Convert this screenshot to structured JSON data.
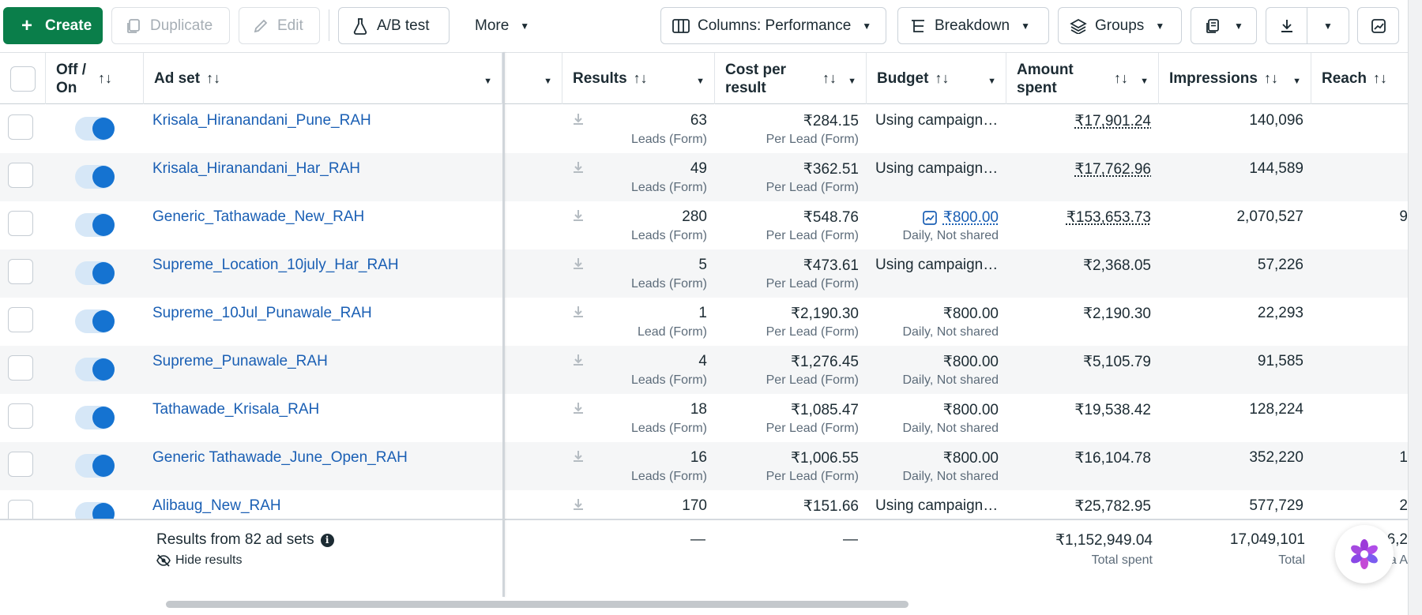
{
  "toolbar": {
    "create": "Create",
    "duplicate": "Duplicate",
    "edit": "Edit",
    "ab_test": "A/B test",
    "more": "More",
    "columns": "Columns: Performance",
    "breakdown": "Breakdown",
    "groups": "Groups"
  },
  "headers": {
    "off_on": "Off /\nOn",
    "ad_set": "Ad set",
    "results": "Results",
    "cost_per_result": "Cost per\nresult",
    "budget": "Budget",
    "amount_spent": "Amount\nspent",
    "impressions": "Impressions",
    "reach": "Reach"
  },
  "rows": [
    {
      "name": "Krisala_Hiranandani_Pune_RAH",
      "results": "63",
      "results_sub": "Leads (Form)",
      "cost": "₹284.15",
      "cost_sub": "Per Lead (Form)",
      "budget": "Using campaign…",
      "budget_sub": "",
      "spent": "₹17,901.24",
      "impressions": "140,096"
    },
    {
      "name": "Krisala_Hiranandani_Har_RAH",
      "results": "49",
      "results_sub": "Leads (Form)",
      "cost": "₹362.51",
      "cost_sub": "Per Lead (Form)",
      "budget": "Using campaign…",
      "budget_sub": "",
      "spent": "₹17,762.96",
      "impressions": "144,589"
    },
    {
      "name": "Generic_Tathawade_New_RAH",
      "results": "280",
      "results_sub": "Leads (Form)",
      "cost": "₹548.76",
      "cost_sub": "Per Lead (Form)",
      "budget": "₹800.00",
      "budget_sub": "Daily, Not shared",
      "spent": "₹153,653.73",
      "impressions": "2,070,527",
      "reach_partial": "9"
    },
    {
      "name": "Supreme_Location_10july_Har_RAH",
      "results": "5",
      "results_sub": "Leads (Form)",
      "cost": "₹473.61",
      "cost_sub": "Per Lead (Form)",
      "budget": "Using campaign…",
      "budget_sub": "",
      "spent": "₹2,368.05",
      "impressions": "57,226"
    },
    {
      "name": "Supreme_10Jul_Punawale_RAH",
      "results": "1",
      "results_sub": "Lead (Form)",
      "cost": "₹2,190.30",
      "cost_sub": "Per Lead (Form)",
      "budget": "₹800.00",
      "budget_sub": "Daily, Not shared",
      "spent": "₹2,190.30",
      "impressions": "22,293"
    },
    {
      "name": "Supreme_Punawale_RAH",
      "results": "4",
      "results_sub": "Leads (Form)",
      "cost": "₹1,276.45",
      "cost_sub": "Per Lead (Form)",
      "budget": "₹800.00",
      "budget_sub": "Daily, Not shared",
      "spent": "₹5,105.79",
      "impressions": "91,585"
    },
    {
      "name": "Tathawade_Krisala_RAH",
      "results": "18",
      "results_sub": "Leads (Form)",
      "cost": "₹1,085.47",
      "cost_sub": "Per Lead (Form)",
      "budget": "₹800.00",
      "budget_sub": "Daily, Not shared",
      "spent": "₹19,538.42",
      "impressions": "128,224"
    },
    {
      "name": "Generic Tathawade_June_Open_RAH",
      "results": "16",
      "results_sub": "Leads (Form)",
      "cost": "₹1,006.55",
      "cost_sub": "Per Lead (Form)",
      "budget": "₹800.00",
      "budget_sub": "Daily, Not shared",
      "spent": "₹16,104.78",
      "impressions": "352,220",
      "reach_partial": "1"
    },
    {
      "name": "Alibaug_New_RAH",
      "results": "170",
      "results_sub": "",
      "cost": "₹151.66",
      "cost_sub": "",
      "budget": "Using campaign…",
      "budget_sub": "",
      "spent": "₹25,782.95",
      "impressions": "577,729",
      "reach_partial": "2"
    }
  ],
  "footer": {
    "results_from": "Results from 82 ad sets",
    "hide_results": "Hide results",
    "results_dash": "—",
    "cost_dash": "—",
    "total_spent": "₹1,152,949.04",
    "total_spent_label": "Total spent",
    "total_impressions": "17,049,101",
    "total_impressions_label": "Total",
    "reach_partial": "6,2",
    "reach_sub_partial": "a A"
  },
  "colors": {
    "primary_green": "#0a7e4a",
    "link_blue": "#1a5fb4",
    "toggle_blue": "#1573d1"
  }
}
